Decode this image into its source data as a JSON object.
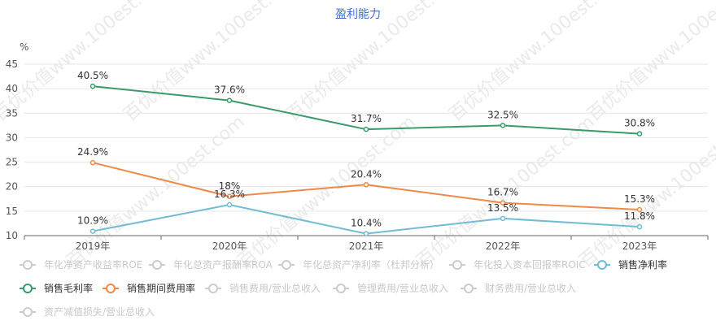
{
  "chart_data": {
    "type": "line",
    "title": "盈利能力",
    "y_unit": "%",
    "categories": [
      "2019年",
      "2020年",
      "2021年",
      "2022年",
      "2023年"
    ],
    "ylim": [
      10,
      45
    ],
    "yticks": [
      10,
      15,
      20,
      25,
      30,
      35,
      40,
      45
    ],
    "grid": true,
    "series": [
      {
        "name": "销售毛利率",
        "color": "#3a9a6a",
        "values": [
          40.5,
          37.6,
          31.7,
          32.5,
          30.8
        ],
        "labels": [
          "40.5%",
          "37.6%",
          "31.7%",
          "32.5%",
          "30.8%"
        ]
      },
      {
        "name": "销售期间费用率",
        "color": "#f08848",
        "values": [
          24.9,
          18,
          20.4,
          16.7,
          15.3
        ],
        "labels": [
          "24.9%",
          "18%",
          "20.4%",
          "16.7%",
          "15.3%"
        ]
      },
      {
        "name": "销售净利率",
        "color": "#72bcd4",
        "values": [
          10.9,
          16.3,
          10.4,
          13.5,
          11.8
        ],
        "labels": [
          "10.9%",
          "16.3%",
          "10.4%",
          "13.5%",
          "11.8%"
        ]
      }
    ],
    "legend": [
      {
        "name": "年化净资产收益率ROE",
        "active": false,
        "color": "#cccccc"
      },
      {
        "name": "年化总资产报酬率ROA",
        "active": false,
        "color": "#cccccc"
      },
      {
        "name": "年化总资产净利率（杜邦分析）",
        "active": false,
        "color": "#cccccc"
      },
      {
        "name": "年化投入资本回报率ROIC",
        "active": false,
        "color": "#cccccc"
      },
      {
        "name": "销售净利率",
        "active": true,
        "color": "#72bcd4"
      },
      {
        "name": "销售毛利率",
        "active": true,
        "color": "#3a9a6a"
      },
      {
        "name": "销售期间费用率",
        "active": true,
        "color": "#f08848"
      },
      {
        "name": "销售费用/营业总收入",
        "active": false,
        "color": "#cccccc"
      },
      {
        "name": "管理费用/营业总收入",
        "active": false,
        "color": "#cccccc"
      },
      {
        "name": "财务费用/营业总收入",
        "active": false,
        "color": "#cccccc"
      },
      {
        "name": "资产减值损失/营业总收入",
        "active": false,
        "color": "#cccccc"
      }
    ],
    "legend_placement": "bottom"
  },
  "watermark": "百优价值www.100est.com"
}
